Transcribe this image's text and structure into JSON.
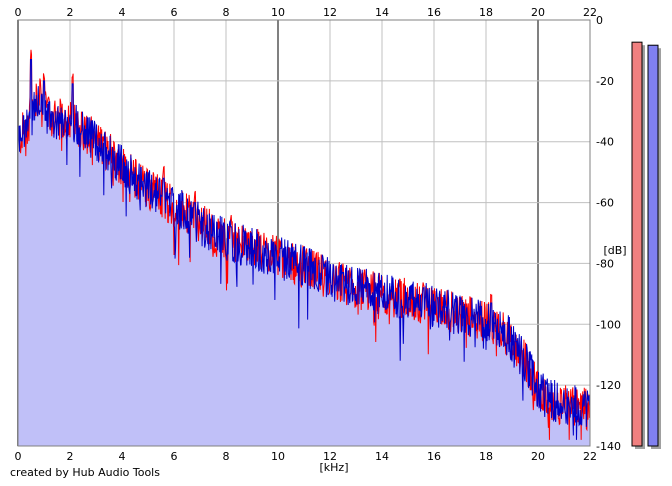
{
  "credit": "created by Hub Audio Tools",
  "chart_data": {
    "type": "area",
    "xlabel": "[kHz]",
    "ylabel": "[dB]",
    "xlim": [
      0,
      22
    ],
    "ylim": [
      -140,
      0
    ],
    "x_ticks": [
      0,
      2,
      4,
      6,
      8,
      10,
      12,
      14,
      16,
      18,
      20,
      22
    ],
    "y_ticks": [
      0,
      -20,
      -40,
      -60,
      -80,
      -100,
      -120,
      -140
    ],
    "grid": true,
    "colors": {
      "fill": "#c0c0f8",
      "series_1": "#ff0000",
      "series_2": "#0000c8",
      "grid": "#c0c0c0",
      "grid_major": "#808080",
      "meter_1": "#f08080",
      "meter_2": "#8080f0",
      "meter_shadow": "#a0a0a0"
    },
    "level_meters": [
      {
        "color": "#f08080",
        "level_db": -4
      },
      {
        "color": "#8080f0",
        "level_db": -5
      }
    ],
    "envelope": {
      "x": [
        0,
        0.3,
        0.6,
        0.8,
        1.0,
        1.5,
        2.0,
        2.5,
        3.0,
        3.5,
        4.0,
        4.5,
        5.0,
        5.5,
        6.0,
        6.5,
        7.0,
        8.0,
        9.0,
        10.0,
        11.0,
        12.0,
        13.0,
        14.0,
        15.0,
        16.0,
        17.0,
        18.0,
        18.7,
        19.2,
        19.7,
        20.0,
        20.5,
        21.0,
        21.5,
        22.0
      ],
      "y": [
        -40,
        -35,
        -30,
        -25,
        -30,
        -33,
        -32,
        -36,
        -40,
        -43,
        -48,
        -52,
        -55,
        -58,
        -61,
        -64,
        -67,
        -72,
        -75,
        -78,
        -81,
        -85,
        -88,
        -90,
        -92,
        -94,
        -97,
        -99,
        -102,
        -108,
        -115,
        -122,
        -125,
        -126,
        -127,
        -128
      ]
    },
    "peaks": [
      {
        "x": 0.5,
        "y": -13
      },
      {
        "x": 1.0,
        "y": -20
      },
      {
        "x": 2.1,
        "y": -21
      },
      {
        "x": 5.6,
        "y": -52
      },
      {
        "x": 6.8,
        "y": -60
      },
      {
        "x": 8.2,
        "y": -68
      },
      {
        "x": 10.1,
        "y": -75
      },
      {
        "x": 12.5,
        "y": -83
      },
      {
        "x": 15.6,
        "y": -88
      },
      {
        "x": 18.2,
        "y": -93
      }
    ],
    "series": [
      {
        "color": "#ff0000"
      },
      {
        "color": "#0000c8"
      }
    ]
  }
}
